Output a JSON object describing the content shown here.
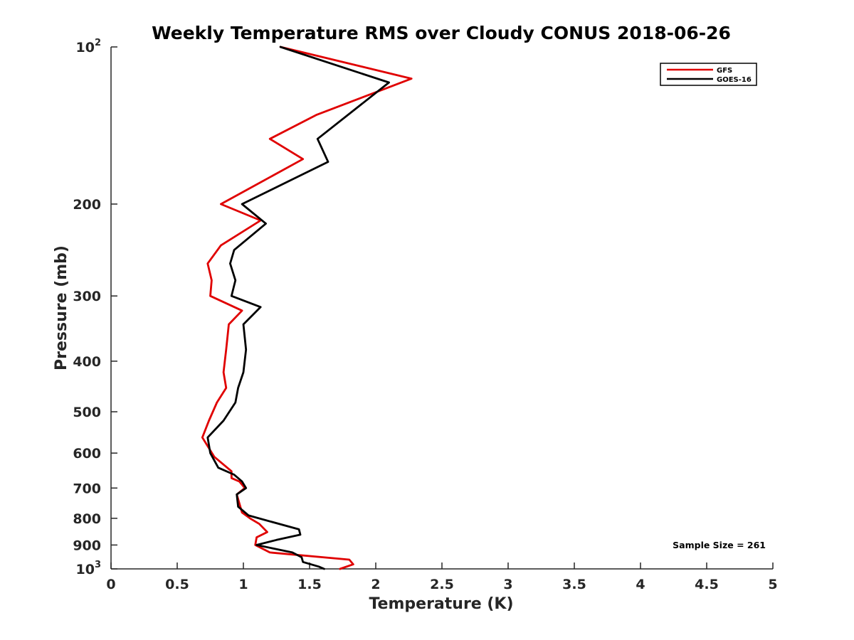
{
  "chart_data": {
    "type": "line",
    "title": "Weekly Temperature RMS over Cloudy CONUS 2018-06-26",
    "xlabel": "Temperature (K)",
    "ylabel": "Pressure (mb)",
    "xlim": [
      0,
      5
    ],
    "ylim": [
      100,
      1000
    ],
    "y_scale": "log",
    "y_reversed": true,
    "x_ticks": [
      "0",
      "0.5",
      "1",
      "1.5",
      "2",
      "2.5",
      "3",
      "3.5",
      "4",
      "4.5",
      "5"
    ],
    "y_ticks": [
      {
        "value": 100,
        "label": "10",
        "sup": "2"
      },
      {
        "value": 200,
        "label": "200",
        "sup": ""
      },
      {
        "value": 300,
        "label": "300",
        "sup": ""
      },
      {
        "value": 400,
        "label": "400",
        "sup": ""
      },
      {
        "value": 500,
        "label": "500",
        "sup": ""
      },
      {
        "value": 600,
        "label": "600",
        "sup": ""
      },
      {
        "value": 700,
        "label": "700",
        "sup": ""
      },
      {
        "value": 800,
        "label": "800",
        "sup": ""
      },
      {
        "value": 900,
        "label": "900",
        "sup": ""
      },
      {
        "value": 1000,
        "label": "10",
        "sup": "3"
      }
    ],
    "grid": false,
    "legend_position": "top-right",
    "annotation": "Sample Size = 261",
    "series": [
      {
        "name": "GFS",
        "color": "#e00000",
        "points": [
          [
            1.28,
            100
          ],
          [
            2.27,
            115
          ],
          [
            1.55,
            135
          ],
          [
            1.2,
            150
          ],
          [
            1.45,
            164
          ],
          [
            0.83,
            200
          ],
          [
            1.13,
            215
          ],
          [
            0.83,
            240
          ],
          [
            0.73,
            260
          ],
          [
            0.76,
            280
          ],
          [
            0.75,
            300
          ],
          [
            0.99,
            320
          ],
          [
            0.89,
            340
          ],
          [
            0.87,
            380
          ],
          [
            0.85,
            420
          ],
          [
            0.87,
            450
          ],
          [
            0.8,
            480
          ],
          [
            0.74,
            520
          ],
          [
            0.69,
            560
          ],
          [
            0.78,
            610
          ],
          [
            0.91,
            650
          ],
          [
            0.91,
            670
          ],
          [
            0.97,
            680
          ],
          [
            1.01,
            700
          ],
          [
            0.95,
            720
          ],
          [
            0.99,
            780
          ],
          [
            1.05,
            800
          ],
          [
            1.12,
            820
          ],
          [
            1.18,
            850
          ],
          [
            1.1,
            870
          ],
          [
            1.09,
            900
          ],
          [
            1.2,
            930
          ],
          [
            1.8,
            960
          ],
          [
            1.83,
            980
          ],
          [
            1.73,
            1000
          ]
        ]
      },
      {
        "name": "GOES-16",
        "color": "#000000",
        "points": [
          [
            1.28,
            100
          ],
          [
            2.1,
            117
          ],
          [
            1.56,
            150
          ],
          [
            1.64,
            166
          ],
          [
            0.99,
            200
          ],
          [
            1.17,
            218
          ],
          [
            0.93,
            245
          ],
          [
            0.9,
            260
          ],
          [
            0.94,
            280
          ],
          [
            0.91,
            300
          ],
          [
            1.13,
            315
          ],
          [
            1.0,
            340
          ],
          [
            1.01,
            360
          ],
          [
            1.02,
            380
          ],
          [
            1.0,
            420
          ],
          [
            0.96,
            450
          ],
          [
            0.94,
            480
          ],
          [
            0.85,
            520
          ],
          [
            0.73,
            560
          ],
          [
            0.75,
            600
          ],
          [
            0.81,
            640
          ],
          [
            0.93,
            660
          ],
          [
            0.99,
            680
          ],
          [
            1.02,
            700
          ],
          [
            0.95,
            720
          ],
          [
            0.96,
            760
          ],
          [
            1.04,
            790
          ],
          [
            1.42,
            840
          ],
          [
            1.43,
            860
          ],
          [
            1.25,
            880
          ],
          [
            1.1,
            900
          ],
          [
            1.37,
            930
          ],
          [
            1.44,
            950
          ],
          [
            1.45,
            970
          ],
          [
            1.57,
            990
          ],
          [
            1.61,
            1000
          ]
        ]
      }
    ]
  }
}
